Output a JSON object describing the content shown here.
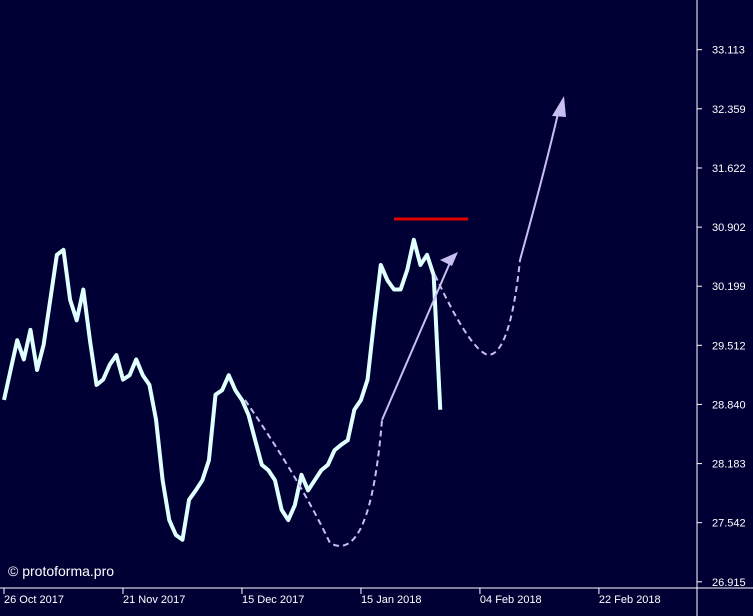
{
  "chart_data": {
    "type": "line",
    "watermark": "© protoforma.pro",
    "categories": [
      "26 Oct 2017",
      null,
      null,
      null,
      null,
      null,
      null,
      null,
      null,
      null,
      null,
      null,
      null,
      null,
      null,
      null,
      null,
      null,
      "21 Nov 2017",
      null,
      null,
      null,
      null,
      null,
      null,
      null,
      null,
      null,
      null,
      null,
      null,
      null,
      null,
      null,
      null,
      null,
      "15 Dec 2017",
      null,
      null,
      null,
      null,
      null,
      null,
      null,
      null,
      null,
      null,
      null,
      null,
      null,
      null,
      null,
      null,
      null,
      "15 Jan 2018",
      null,
      null,
      null,
      null,
      null,
      null,
      null,
      null,
      null,
      null,
      null,
      null,
      null,
      null,
      null,
      null,
      null,
      "04 Feb 2018",
      null,
      null,
      null,
      null,
      null,
      null,
      null,
      null,
      null,
      null,
      null,
      null,
      null,
      null,
      null,
      null,
      null,
      "22 Feb 2018",
      null,
      null,
      null,
      null,
      null,
      null,
      null,
      null,
      null,
      null,
      null,
      null,
      null,
      null
    ],
    "series": [
      {
        "color": "#e0ffff",
        "values": [
          28.89,
          29.23,
          29.57,
          29.35,
          29.69,
          29.23,
          29.52,
          30.04,
          30.57,
          30.63,
          30.04,
          29.8,
          30.16,
          29.57,
          29.06,
          29.12,
          29.29,
          29.4,
          29.12,
          29.17,
          29.35,
          29.17,
          29.06,
          28.67,
          28.0,
          27.57,
          27.41,
          27.36,
          27.79,
          27.89,
          28.0,
          28.22,
          28.95,
          29.0,
          29.17,
          29.0,
          28.89,
          28.72,
          28.44,
          28.17,
          28.11,
          28.0,
          27.68,
          27.57,
          27.73,
          28.06,
          27.89,
          28.0,
          28.11,
          28.17,
          28.33,
          28.39,
          28.44,
          28.78,
          28.89,
          29.12,
          29.8,
          30.45,
          30.27,
          30.16,
          30.16,
          30.39,
          30.75,
          30.45,
          30.57,
          30.33,
          28.78,
          null,
          null,
          null,
          null,
          null,
          null,
          null,
          null,
          null,
          null,
          null,
          null,
          null,
          null,
          null,
          null,
          null,
          null,
          null,
          null,
          null,
          null,
          null,
          null,
          null,
          null,
          null,
          null,
          null,
          null,
          null,
          null,
          null,
          null,
          null,
          null,
          null,
          null
        ]
      }
    ],
    "ylim": [
      26.85,
      33.76
    ],
    "log_scale": true,
    "yticks": [
      {
        "value": 26.915,
        "label": "26.915"
      },
      27.542,
      28.183,
      {
        "value": 28.84,
        "label": "28.840"
      },
      29.512,
      30.199,
      {
        "value": 30.902,
        "label": "30.902"
      },
      31.622,
      32.359,
      33.113
    ]
  }
}
